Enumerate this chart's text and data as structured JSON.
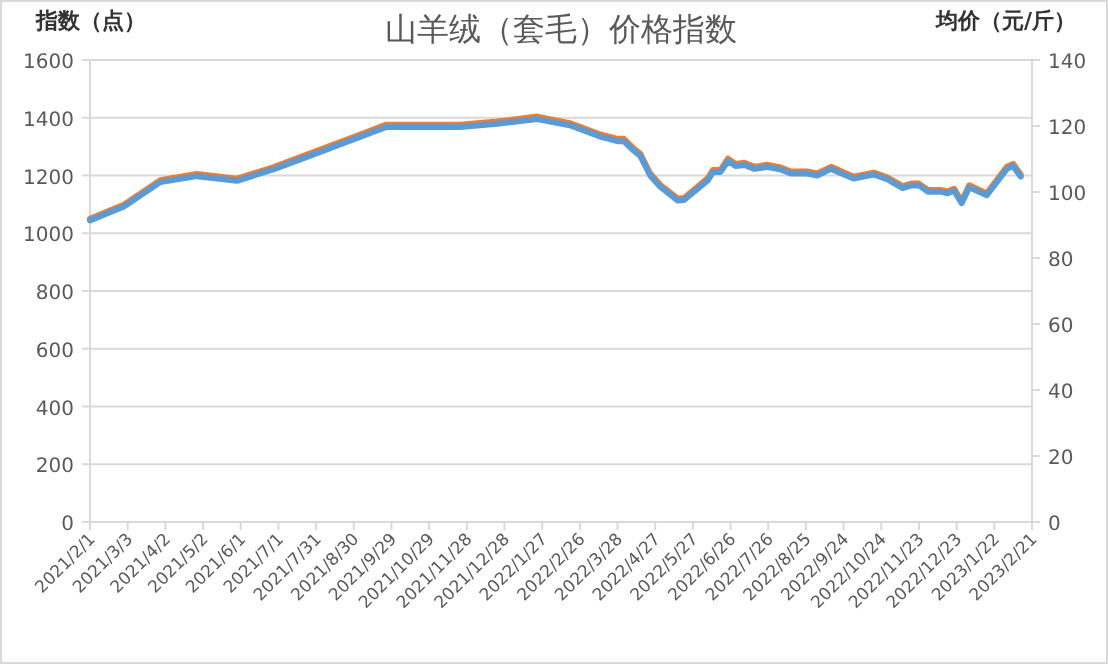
{
  "chart_data": {
    "type": "line",
    "title": "山羊绒（套毛）价格指数",
    "ylabel": "指数（点）",
    "y2label": "均价（元/斤）",
    "x": [
      "2021-02-01",
      "2021-02-28",
      "2021-03-29",
      "2021-04-27",
      "2021-05-29",
      "2021-06-28",
      "2021-07-29",
      "2021-08-28",
      "2021-09-25",
      "2021-11-23",
      "2021-12-22",
      "2022-01-23",
      "2022-02-19",
      "2022-03-15",
      "2022-03-28",
      "2022-04-02",
      "2022-04-10",
      "2022-04-15",
      "2022-04-23",
      "2022-05-01",
      "2022-05-15",
      "2022-05-20",
      "2022-06-08",
      "2022-06-12",
      "2022-06-18",
      "2022-06-24",
      "2022-06-30",
      "2022-07-07",
      "2022-07-15",
      "2022-07-25",
      "2022-08-05",
      "2022-08-13",
      "2022-08-26",
      "2022-09-03",
      "2022-09-14",
      "2022-10-02",
      "2022-10-18",
      "2022-10-29",
      "2022-11-10",
      "2022-11-17",
      "2022-11-23",
      "2022-11-30",
      "2022-12-10",
      "2022-12-16",
      "2022-12-21",
      "2022-12-27",
      "2023-01-02",
      "2023-01-16",
      "2023-02-01",
      "2023-02-06",
      "2023-02-12"
    ],
    "series": [
      {
        "color": "#ed7d31",
        "values": [
          1050,
          1099,
          1184,
          1205,
          1189,
          1230,
          1281,
          1330,
          1376,
          1376,
          1387,
          1404,
          1380,
          1341,
          1327,
          1327,
          1293,
          1276,
          1207,
          1168,
          1120,
          1122,
          1191,
          1219,
          1219,
          1258,
          1240,
          1244,
          1230,
          1237,
          1228,
          1214,
          1214,
          1207,
          1230,
          1196,
          1210,
          1193,
          1163,
          1172,
          1172,
          1150,
          1150,
          1145,
          1154,
          1110,
          1166,
          1138,
          1230,
          1240,
          1203
        ]
      },
      {
        "color": "#5b9bd5",
        "axis": "y2",
        "values": [
          91.4,
          95.6,
          103.0,
          104.8,
          103.4,
          107.0,
          111.4,
          115.7,
          119.7,
          119.7,
          120.7,
          122.1,
          120.1,
          116.7,
          115.4,
          115.4,
          112.5,
          111.0,
          105.0,
          101.6,
          97.4,
          97.6,
          103.6,
          106.1,
          106.1,
          109.4,
          107.9,
          108.2,
          107.0,
          107.6,
          106.8,
          105.6,
          105.6,
          105.0,
          107.0,
          104.1,
          105.3,
          103.8,
          101.2,
          102.0,
          102.0,
          100.1,
          100.1,
          99.6,
          100.4,
          96.6,
          101.4,
          99.0,
          107.0,
          107.9,
          104.7
        ]
      }
    ],
    "xlim": [
      "2021-02-01",
      "2023-02-21"
    ],
    "xticks": [
      {
        "value": "2021-02-01",
        "label": "2021/2/1"
      },
      {
        "value": "2021-03-03",
        "label": "2021/3/3"
      },
      {
        "value": "2021-04-02",
        "label": "2021/4/2"
      },
      {
        "value": "2021-05-02",
        "label": "2021/5/2"
      },
      {
        "value": "2021-06-01",
        "label": "2021/6/1"
      },
      {
        "value": "2021-07-01",
        "label": "2021/7/1"
      },
      {
        "value": "2021-07-31",
        "label": "2021/7/31"
      },
      {
        "value": "2021-08-30",
        "label": "2021/8/30"
      },
      {
        "value": "2021-09-29",
        "label": "2021/9/29"
      },
      {
        "value": "2021-10-29",
        "label": "2021/10/29"
      },
      {
        "value": "2021-11-28",
        "label": "2021/11/28"
      },
      {
        "value": "2021-12-28",
        "label": "2021/12/28"
      },
      {
        "value": "2022-01-27",
        "label": "2022/1/27"
      },
      {
        "value": "2022-02-26",
        "label": "2022/2/26"
      },
      {
        "value": "2022-03-28",
        "label": "2022/3/28"
      },
      {
        "value": "2022-04-27",
        "label": "2022/4/27"
      },
      {
        "value": "2022-05-27",
        "label": "2022/5/27"
      },
      {
        "value": "2022-06-26",
        "label": "2022/6/26"
      },
      {
        "value": "2022-07-26",
        "label": "2022/7/26"
      },
      {
        "value": "2022-08-25",
        "label": "2022/8/25"
      },
      {
        "value": "2022-09-24",
        "label": "2022/9/24"
      },
      {
        "value": "2022-10-24",
        "label": "2022/10/24"
      },
      {
        "value": "2022-11-23",
        "label": "2022/11/23"
      },
      {
        "value": "2022-12-23",
        "label": "2022/12/23"
      },
      {
        "value": "2023-01-22",
        "label": "2023/1/22"
      },
      {
        "value": "2023-02-21",
        "label": "2023/2/21"
      }
    ],
    "ylim": [
      0,
      1600
    ],
    "yticks": [
      0,
      200,
      400,
      600,
      800,
      1000,
      1200,
      1400,
      1600
    ],
    "y2lim": [
      0,
      140
    ],
    "y2ticks": [
      0,
      20,
      40,
      60,
      80,
      100,
      120,
      140
    ],
    "grid": "y"
  }
}
